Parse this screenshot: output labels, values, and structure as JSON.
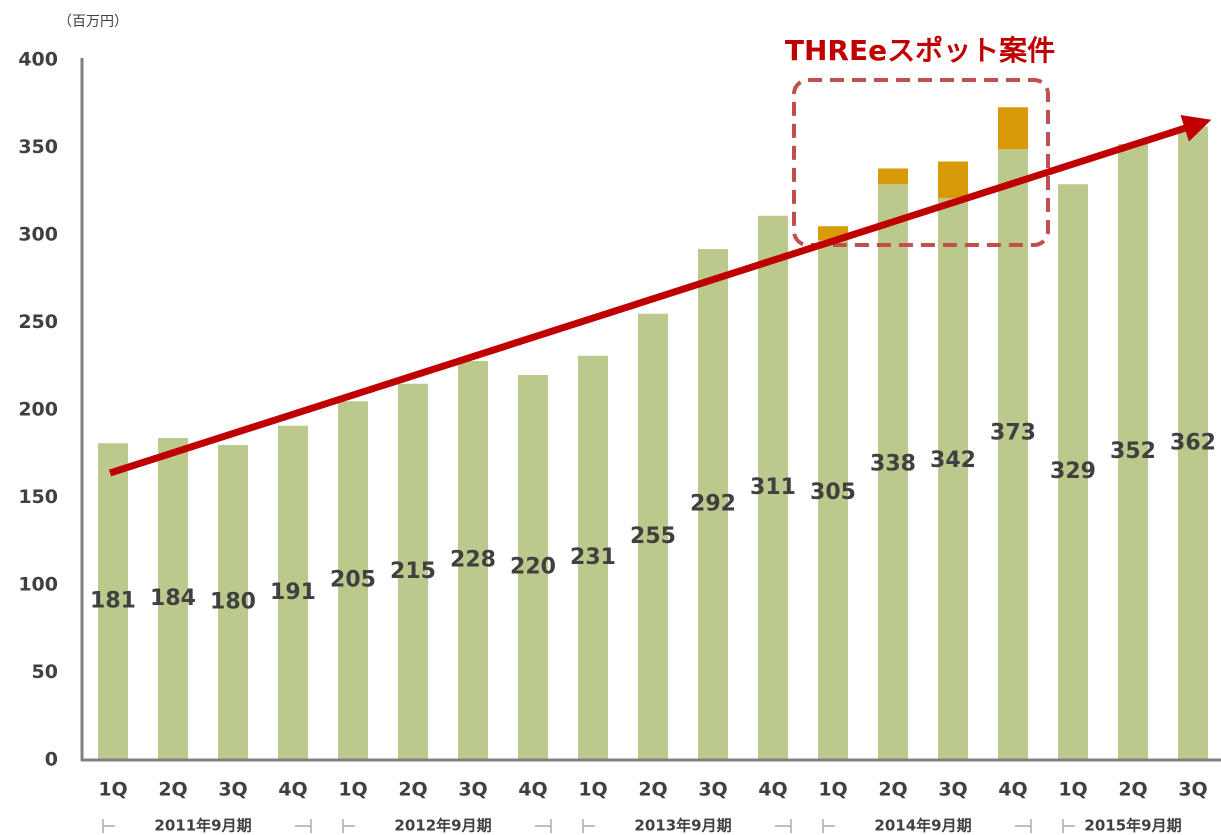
{
  "chart_data": {
    "type": "bar",
    "unit_label": "（百万円）",
    "annotation": "THREeスポット案件",
    "categories": [
      "1Q",
      "2Q",
      "3Q",
      "4Q",
      "1Q",
      "2Q",
      "3Q",
      "4Q",
      "1Q",
      "2Q",
      "3Q",
      "4Q",
      "1Q",
      "2Q",
      "3Q",
      "4Q",
      "1Q",
      "2Q",
      "3Q"
    ],
    "groups": [
      "2011年9月期",
      "2012年9月期",
      "2013年9月期",
      "2014年9月期",
      "2015年9月期"
    ],
    "series": [
      {
        "color": "#bcc98c",
        "values": [
          181,
          184,
          180,
          191,
          205,
          215,
          228,
          220,
          231,
          255,
          292,
          311,
          297,
          329,
          321,
          349,
          329,
          352,
          362
        ]
      },
      {
        "color": "#d99a0a",
        "values": [
          null,
          null,
          null,
          null,
          null,
          null,
          null,
          null,
          null,
          null,
          null,
          null,
          8,
          9,
          21,
          24,
          null,
          null,
          null
        ]
      }
    ],
    "totals": [
      181,
      184,
      180,
      191,
      205,
      215,
      228,
      220,
      231,
      255,
      292,
      311,
      305,
      338,
      342,
      373,
      329,
      352,
      362
    ],
    "ylim": [
      0,
      400
    ],
    "yticks": [
      0,
      50,
      100,
      150,
      200,
      250,
      300,
      350,
      400
    ],
    "grid": false
  }
}
